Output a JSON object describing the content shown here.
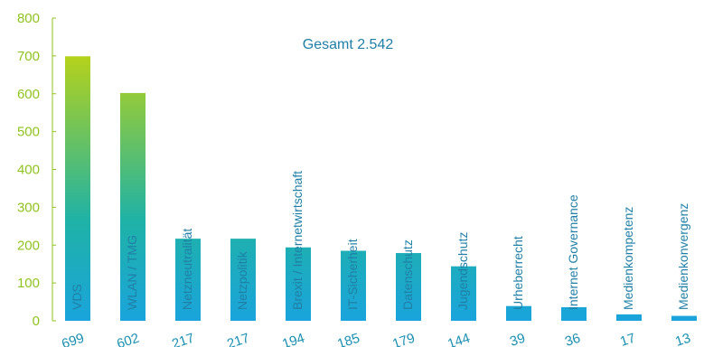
{
  "chart_data": {
    "type": "bar",
    "title": "Gesamt 2.542",
    "categories": [
      "VDS",
      "WLAN / TMG",
      "Netzneutralität",
      "Netzpolitik",
      "Brexit / Internetwirtschaft",
      "IT-Sicherheit",
      "Datenschutz",
      "Jugendschutz",
      "Urheberrecht",
      "Internet Governance",
      "Medienkompetenz",
      "Medienkonvergenz"
    ],
    "values": [
      699,
      602,
      217,
      217,
      194,
      185,
      179,
      144,
      39,
      36,
      17,
      13
    ],
    "value_labels": [
      "699",
      "602",
      "217",
      "217",
      "194",
      "185",
      "179",
      "144",
      "39",
      "36",
      "17",
      "13"
    ],
    "yticks": [
      "0",
      "100",
      "200",
      "300",
      "400",
      "500",
      "600",
      "700",
      "800"
    ],
    "ylim": [
      0,
      800
    ],
    "xlabel": "",
    "ylabel": "",
    "grid": false,
    "colors": {
      "bar_top": "#b5d21b",
      "bar_mid": "#1fb2a6",
      "bar_bottom": "#1aa4dc",
      "axis": "#8fc31f",
      "text": "#1f7fa6"
    }
  }
}
